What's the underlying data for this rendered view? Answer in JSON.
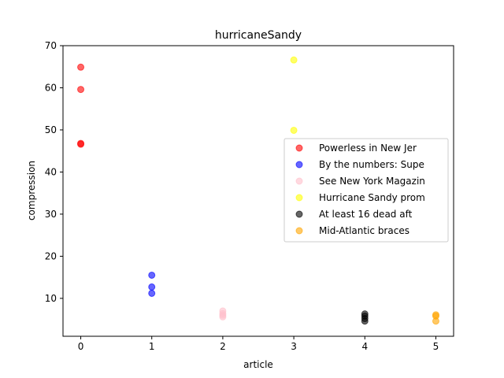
{
  "chart_data": {
    "type": "scatter",
    "title": "hurricaneSandy",
    "xlabel": "article",
    "ylabel": "compression",
    "xlim": [
      -0.25,
      5.25
    ],
    "ylim": [
      1,
      70
    ],
    "xticks": [
      0,
      1,
      2,
      3,
      4,
      5
    ],
    "yticks": [
      10,
      20,
      30,
      40,
      50,
      60,
      70
    ],
    "grid": false,
    "legend_position": "center-right",
    "series": [
      {
        "name": "Powerless in New Jer",
        "color": "#ff0000",
        "x": [
          0,
          0,
          0,
          0
        ],
        "y": [
          64.9,
          59.6,
          46.6,
          46.8
        ]
      },
      {
        "name": "By the numbers: Supe",
        "color": "#0000ff",
        "x": [
          1,
          1,
          1
        ],
        "y": [
          15.5,
          12.7,
          11.2
        ]
      },
      {
        "name": "See New York Magazin",
        "color": "#ffc0cb",
        "x": [
          2,
          2,
          2,
          2
        ],
        "y": [
          7.0,
          6.4,
          6.0,
          5.6
        ]
      },
      {
        "name": "Hurricane Sandy prom",
        "color": "#ffff00",
        "x": [
          3,
          3
        ],
        "y": [
          66.6,
          49.9
        ]
      },
      {
        "name": "At least 16 dead aft",
        "color": "#000000",
        "x": [
          4,
          4,
          4,
          4
        ],
        "y": [
          6.3,
          5.8,
          5.2,
          4.6
        ]
      },
      {
        "name": "Mid-Atlantic braces",
        "color": "#ffa500",
        "x": [
          5,
          5,
          5
        ],
        "y": [
          6.1,
          5.8,
          4.6
        ]
      }
    ]
  }
}
